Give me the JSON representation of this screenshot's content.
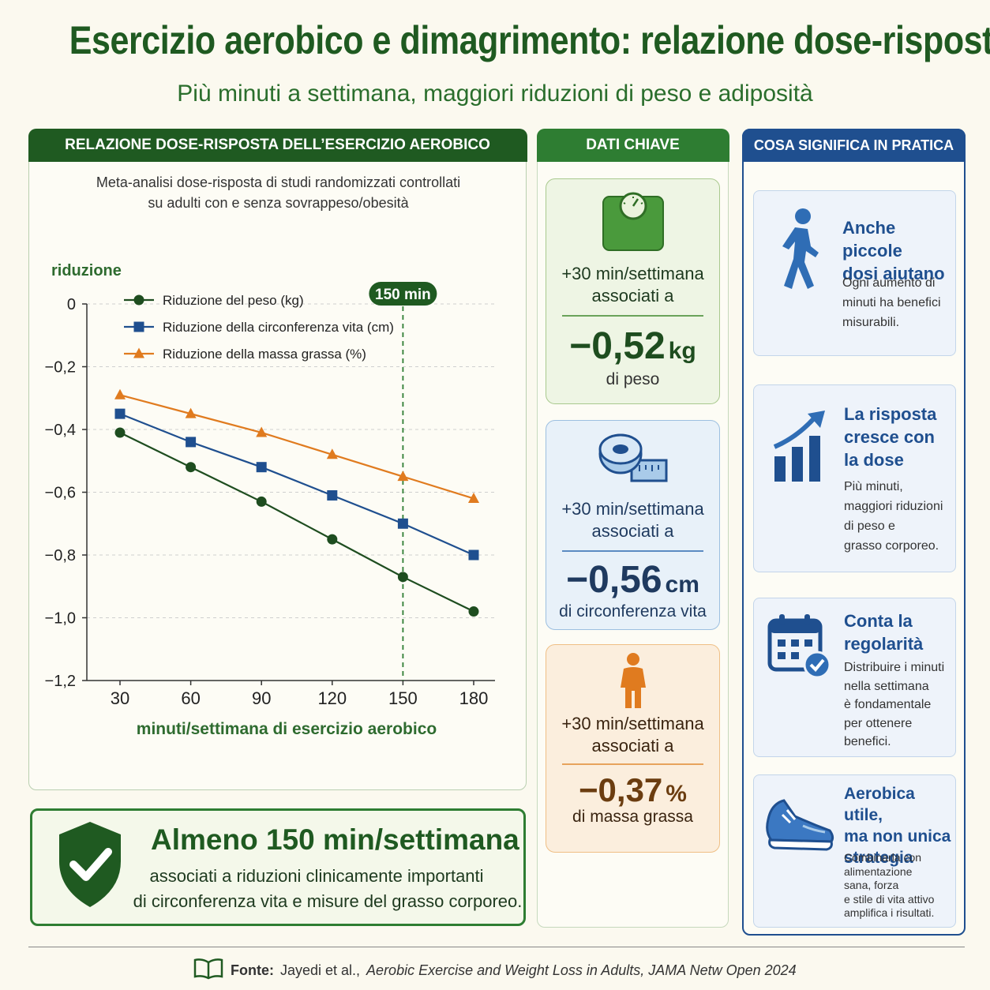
{
  "title": "Esercizio aerobico e dimagrimento: relazione dose-risposta",
  "subtitle": "Più minuti a settimana, maggiori riduzioni di peso e adiposità",
  "chart_panel": {
    "header": "RELAZIONE DOSE-RISPOSTA DELL’ESERCIZIO AEROBICO",
    "desc_line1": "Meta-analisi dose-risposta di studi randomizzati controllati",
    "desc_line2": "su adulti con e senza sovrappeso/obesità"
  },
  "chart_data": {
    "type": "line",
    "ylabel": "riduzione",
    "xlabel": "minuti/settimana di esercizio aerobico",
    "x": [
      30,
      60,
      90,
      120,
      150,
      180
    ],
    "x_tick_labels": [
      "30",
      "60",
      "90",
      "120",
      "150",
      "180"
    ],
    "ylim": [
      -1.2,
      0
    ],
    "y_ticks": [
      0,
      -0.2,
      -0.4,
      -0.6,
      -0.8,
      -1.0,
      -1.2
    ],
    "y_tick_labels": [
      "0",
      "−0,2",
      "−0,4",
      "−0,6",
      "−0,8",
      "−1,0",
      "−1,2"
    ],
    "grid": true,
    "legend_position": "top-left",
    "series": [
      {
        "name": "Riduzione del peso (kg)",
        "color": "#1e4d1f",
        "marker": "circle",
        "values": [
          -0.41,
          -0.52,
          -0.63,
          -0.75,
          -0.87,
          -0.98
        ]
      },
      {
        "name": "Riduzione della circonferenza vita (cm)",
        "color": "#1f4f8f",
        "marker": "square",
        "values": [
          -0.35,
          -0.44,
          -0.52,
          -0.61,
          -0.7,
          -0.8
        ]
      },
      {
        "name": "Riduzione della massa grassa (%)",
        "color": "#e07b1f",
        "marker": "triangle",
        "values": [
          -0.29,
          -0.35,
          -0.41,
          -0.48,
          -0.55,
          -0.62
        ]
      }
    ],
    "annotations": [
      {
        "x": 150,
        "label": "150 min"
      }
    ]
  },
  "key_panel": {
    "header": "DATI CHIAVE",
    "cards": [
      {
        "icon": "scale-icon",
        "line1": "+30 min/settimana",
        "line2": "associati a",
        "value": "−0,52",
        "unit": "kg",
        "desc": "di peso",
        "color": "#1e4d1f"
      },
      {
        "icon": "tape-measure-icon",
        "line1": "+30 min/settimana",
        "line2": "associati a",
        "value": "−0,56",
        "unit": "cm",
        "desc": "di circonferenza vita",
        "color": "#1f4f8f"
      },
      {
        "icon": "body-icon",
        "line1": "+30 min/settimana",
        "line2": "associati a",
        "value": "−0,37",
        "unit": "%",
        "desc": "di massa grassa",
        "color": "#6b3d10"
      }
    ]
  },
  "practice_panel": {
    "header": "COSA SIGNIFICA IN PRATICA",
    "cards": [
      {
        "icon": "walking-person-icon",
        "title": [
          "Anche piccole",
          "dosi aiutano"
        ],
        "text": [
          "Ogni aumento di",
          "minuti ha benefici",
          "misurabili."
        ]
      },
      {
        "icon": "growth-chart-icon",
        "title": [
          "La risposta",
          "cresce con",
          "la dose"
        ],
        "text": [
          "Più minuti,",
          "maggiori riduzioni",
          "di peso e",
          "grasso corporeo."
        ]
      },
      {
        "icon": "calendar-check-icon",
        "title": [
          "Conta la",
          "regolarità"
        ],
        "text": [
          "Distribuire i minuti",
          "nella settimana",
          "è fondamentale",
          "per ottenere",
          "benefici."
        ]
      },
      {
        "icon": "running-shoe-icon",
        "title": [
          "Aerobica utile,",
          "ma non unica",
          "strategia"
        ],
        "text": [
          "Combinarla con",
          "alimentazione",
          "sana, forza",
          "e stile di vita attivo",
          "amplifica i risultati."
        ]
      }
    ]
  },
  "summary": {
    "icon": "shield-check-icon",
    "title": "Almeno 150 min/settimana",
    "line1": "associati a riduzioni clinicamente importanti",
    "line2": "di circonferenza vita e misure del grasso corporeo."
  },
  "footer": {
    "icon": "book-icon",
    "label": "Fonte:",
    "authors": "Jayedi et al.,",
    "citation": "Aerobic Exercise and Weight Loss in Adults, JAMA Netw Open 2024"
  }
}
